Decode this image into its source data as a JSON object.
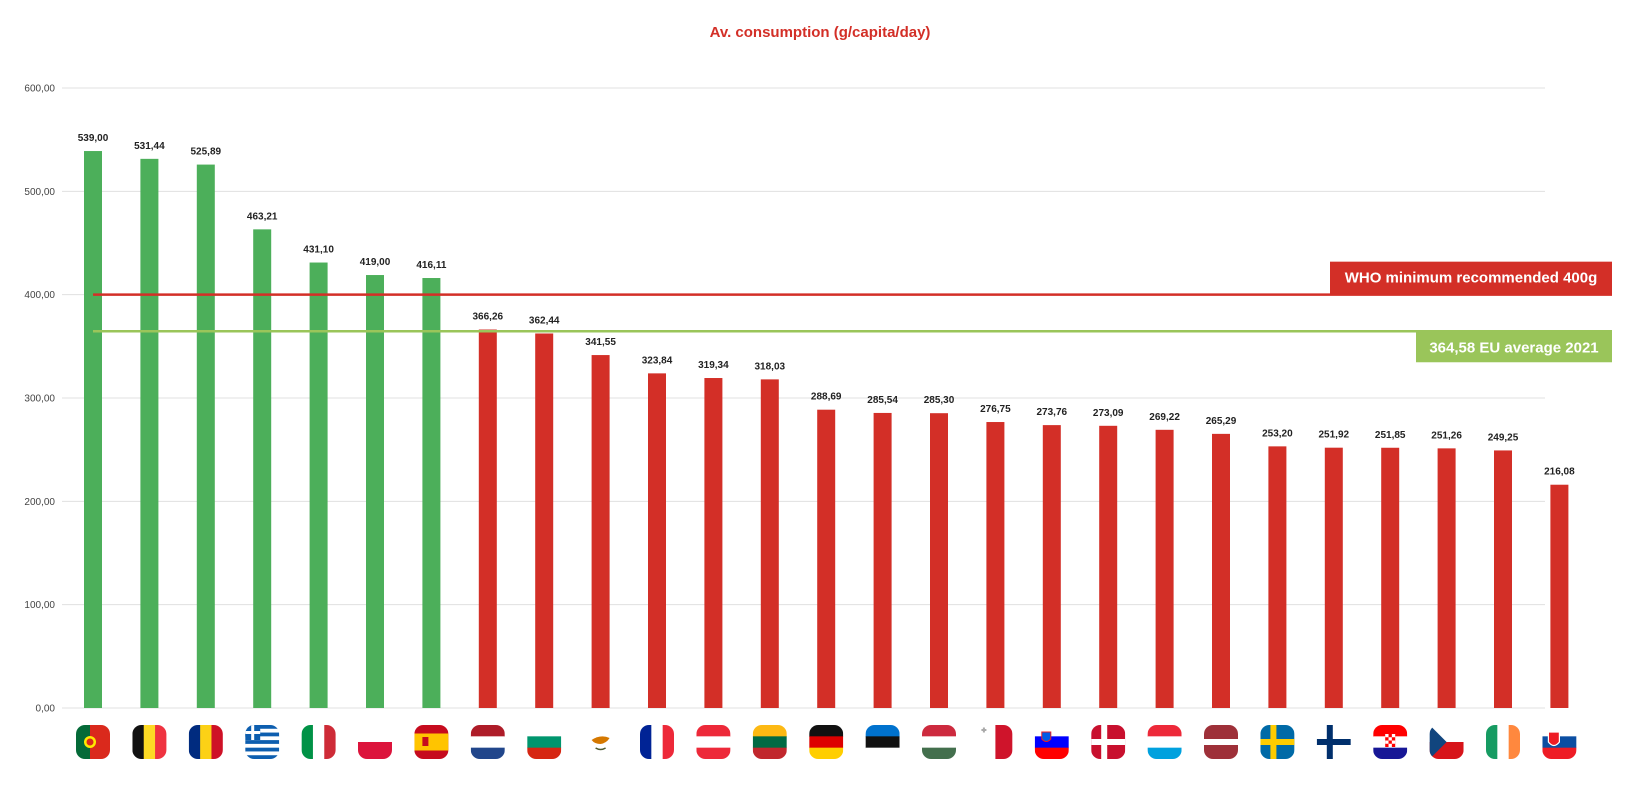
{
  "colors": {
    "above": "#4caf5a",
    "below": "#d32f27",
    "who_line": "#d32f27",
    "eu_line": "#9ac55a",
    "title": "#d32f27",
    "grid": "#e0e0e0"
  },
  "chart_data": {
    "type": "bar",
    "title": "Av. consumption (g/capita/day)",
    "xlabel": "",
    "ylabel": "",
    "ylim": [
      0,
      600
    ],
    "yticks": [
      "0,00",
      "100,00",
      "200,00",
      "300,00",
      "400,00",
      "500,00",
      "600,00"
    ],
    "grid": true,
    "categories": [
      "Portugal",
      "Belgium",
      "Romania",
      "Greece",
      "Italy",
      "Poland",
      "Spain",
      "Netherlands",
      "Bulgaria",
      "Cyprus",
      "France",
      "Austria",
      "Lithuania",
      "Germany",
      "Estonia",
      "Hungary",
      "Malta",
      "Slovenia",
      "Denmark",
      "Luxembourg",
      "Latvia",
      "Sweden",
      "Finland",
      "Croatia",
      "Czechia",
      "Ireland",
      "Slovakia"
    ],
    "values": [
      539.0,
      531.44,
      525.89,
      463.21,
      431.1,
      419.0,
      416.11,
      366.26,
      362.44,
      341.55,
      323.84,
      319.34,
      318.03,
      288.69,
      285.54,
      285.3,
      276.75,
      273.76,
      273.09,
      269.22,
      265.29,
      253.2,
      251.92,
      251.85,
      251.26,
      249.25,
      216.08
    ],
    "labels": [
      "539,00",
      "531,44",
      "525,89",
      "463,21",
      "431,10",
      "419,00",
      "416,11",
      "366,26",
      "362,44",
      "341,55",
      "323,84",
      "319,34",
      "318,03",
      "288,69",
      "285,54",
      "285,30",
      "276,75",
      "273,76",
      "273,09",
      "269,22",
      "265,29",
      "253,20",
      "251,92",
      "251,85",
      "251,26",
      "249,25",
      "216,08"
    ],
    "reference_lines": [
      {
        "value": 400,
        "label": "WHO minimum recommended 400g",
        "color": "#d32f27"
      },
      {
        "value": 364.58,
        "label": "364,58 EU average 2021",
        "color": "#9ac55a"
      }
    ]
  }
}
